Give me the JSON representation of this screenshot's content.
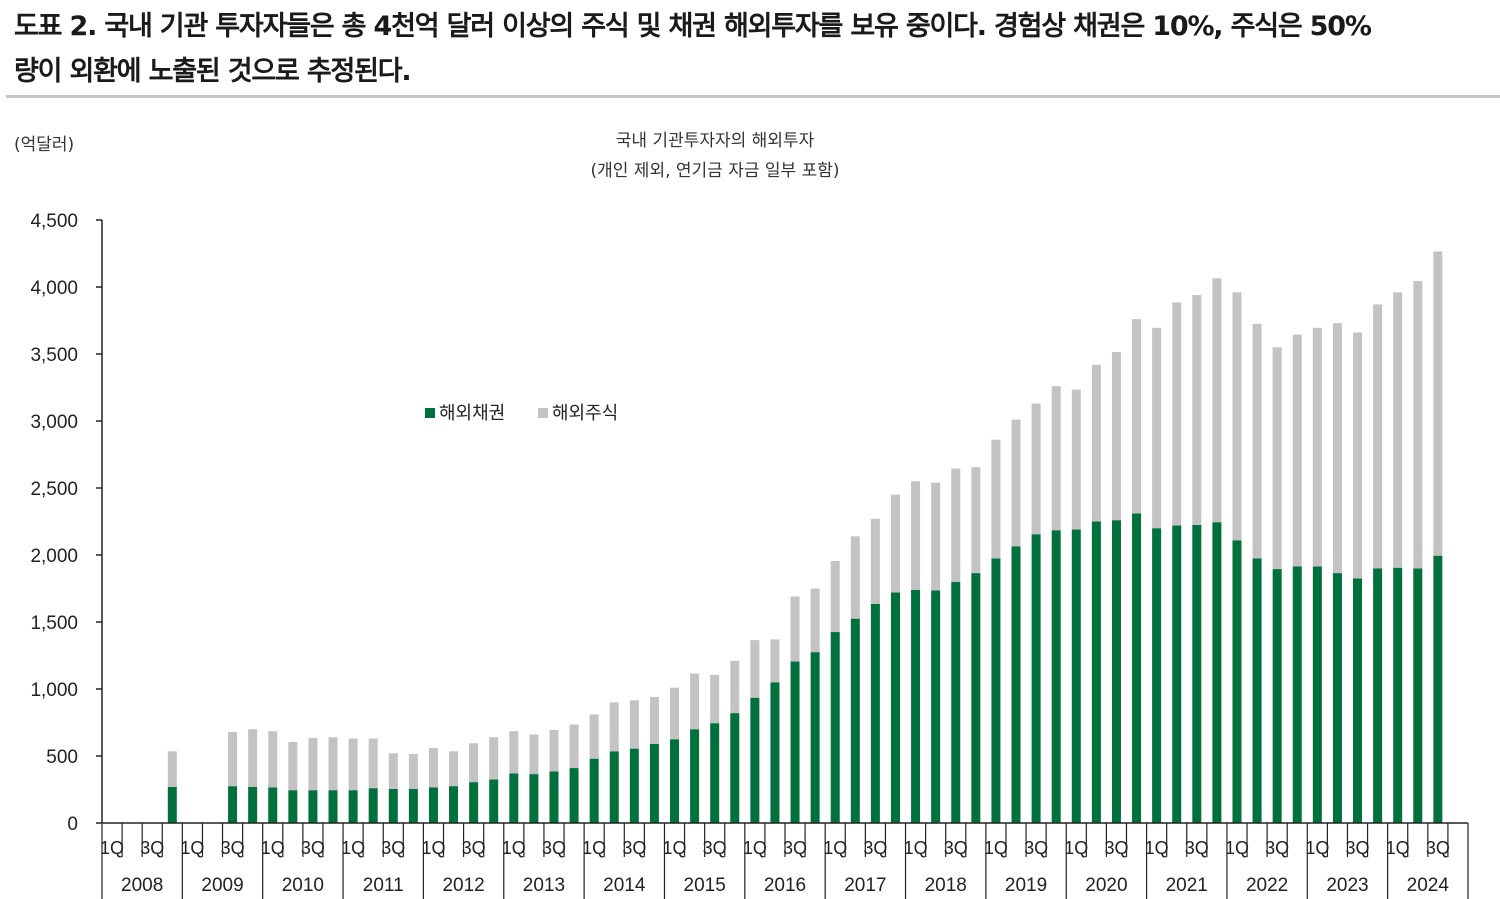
{
  "headline": {
    "line1": "도표 2. 국내 기관 투자자들은 총 4천억 달러 이상의 주식 및 채권 해외투자를 보유 중이다. 경험상 채권은 10%, 주식은 50%",
    "line2": "량이 외환에 노출된 것으로 추정된다."
  },
  "chart_data": {
    "type": "bar",
    "stacked": true,
    "title": "국내 기관투자자의 해외투자",
    "subtitle": "(개인 제외, 연기금 자금 일부 포함)",
    "unit_label": "(억달러)",
    "ylim": [
      0,
      4500
    ],
    "yticks": [
      "0",
      "500",
      "1,000",
      "1,500",
      "2,000",
      "2,500",
      "3,000",
      "3,500",
      "4,000",
      "4,500"
    ],
    "ytick_values": [
      0,
      500,
      1000,
      1500,
      2000,
      2500,
      3000,
      3500,
      4000,
      4500
    ],
    "quarter_tick_labels": [
      "1Q",
      "3Q"
    ],
    "years": [
      "2008",
      "2009",
      "2010",
      "2011",
      "2012",
      "2013",
      "2014",
      "2015",
      "2016",
      "2017",
      "2018",
      "2019",
      "2020",
      "2021",
      "2022",
      "2023",
      "2024"
    ],
    "categories": [
      "2008Q1",
      "2008Q2",
      "2008Q3",
      "2008Q4",
      "2009Q1",
      "2009Q2",
      "2009Q3",
      "2009Q4",
      "2010Q1",
      "2010Q2",
      "2010Q3",
      "2010Q4",
      "2011Q1",
      "2011Q2",
      "2011Q3",
      "2011Q4",
      "2012Q1",
      "2012Q2",
      "2012Q3",
      "2012Q4",
      "2013Q1",
      "2013Q2",
      "2013Q3",
      "2013Q4",
      "2014Q1",
      "2014Q2",
      "2014Q3",
      "2014Q4",
      "2015Q1",
      "2015Q2",
      "2015Q3",
      "2015Q4",
      "2016Q1",
      "2016Q2",
      "2016Q3",
      "2016Q4",
      "2017Q1",
      "2017Q2",
      "2017Q3",
      "2017Q4",
      "2018Q1",
      "2018Q2",
      "2018Q3",
      "2018Q4",
      "2019Q1",
      "2019Q2",
      "2019Q3",
      "2019Q4",
      "2020Q1",
      "2020Q2",
      "2020Q3",
      "2020Q4",
      "2021Q1",
      "2021Q2",
      "2021Q3",
      "2021Q4",
      "2022Q1",
      "2022Q2",
      "2022Q3",
      "2022Q4",
      "2023Q1",
      "2023Q2",
      "2023Q3",
      "2023Q4",
      "2024Q1",
      "2024Q2",
      "2024Q3",
      "2024Q4"
    ],
    "series": [
      {
        "name": "해외채권",
        "color": "#00703c",
        "values": [
          null,
          null,
          null,
          270,
          null,
          null,
          275,
          270,
          265,
          245,
          245,
          245,
          245,
          260,
          255,
          255,
          265,
          275,
          305,
          325,
          370,
          365,
          385,
          410,
          480,
          535,
          555,
          590,
          625,
          700,
          745,
          820,
          935,
          1050,
          1205,
          1275,
          1425,
          1525,
          1635,
          1720,
          1740,
          1735,
          1800,
          1865,
          1975,
          2065,
          2155,
          2185,
          2190,
          2250,
          2260,
          2310,
          2200,
          2220,
          2225,
          2245,
          2110,
          1975,
          1895,
          1915,
          1915,
          1865,
          1825,
          1900,
          1905,
          1900,
          1995,
          null
        ]
      },
      {
        "name": "해외주식",
        "color": "#c3c3c3",
        "values": [
          null,
          null,
          null,
          265,
          null,
          null,
          405,
          430,
          420,
          360,
          390,
          395,
          385,
          370,
          265,
          260,
          295,
          260,
          290,
          315,
          315,
          295,
          310,
          325,
          330,
          365,
          360,
          350,
          385,
          415,
          360,
          390,
          430,
          320,
          485,
          475,
          530,
          615,
          635,
          730,
          810,
          805,
          845,
          790,
          885,
          945,
          975,
          1075,
          1045,
          1170,
          1255,
          1450,
          1495,
          1665,
          1715,
          1820,
          1850,
          1750,
          1655,
          1730,
          1780,
          1865,
          1835,
          1970,
          2055,
          2145,
          2270,
          null
        ]
      }
    ],
    "legend_position": "upper-center",
    "grid": false
  }
}
